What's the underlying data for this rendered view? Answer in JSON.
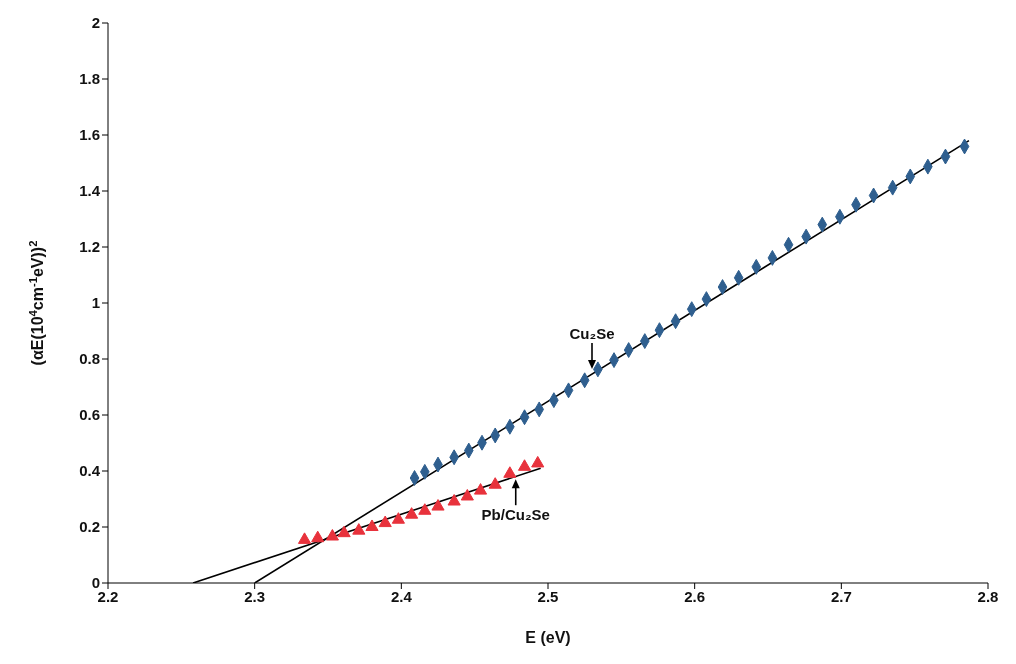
{
  "chart_data": {
    "type": "scatter",
    "xlabel": "E (eV)",
    "ylabel": "(αE(10$^{4}$cm$^{-1}$eV))$^{2}$",
    "xlim": [
      2.2,
      2.8
    ],
    "xticks": [
      2.2,
      2.3,
      2.4,
      2.5,
      2.6,
      2.7,
      2.8
    ],
    "ylim": [
      0,
      2
    ],
    "yticks": [
      0,
      0.2,
      0.4,
      0.6,
      0.8,
      1,
      1.2,
      1.4,
      1.6,
      1.8,
      2
    ],
    "grid": false,
    "legend": false,
    "series": [
      {
        "marker": "diamond",
        "color": "#2f5f8f",
        "x": [
          2.409,
          2.416,
          2.425,
          2.436,
          2.446,
          2.455,
          2.464,
          2.474,
          2.484,
          2.494,
          2.504,
          2.514,
          2.525,
          2.534,
          2.545,
          2.555,
          2.566,
          2.576,
          2.587,
          2.598,
          2.608,
          2.619,
          2.63,
          2.642,
          2.653,
          2.664,
          2.676,
          2.687,
          2.699,
          2.71,
          2.722,
          2.735,
          2.747,
          2.759,
          2.771,
          2.784
        ],
        "values": [
          0.375,
          0.397,
          0.423,
          0.449,
          0.473,
          0.501,
          0.527,
          0.558,
          0.592,
          0.62,
          0.653,
          0.688,
          0.724,
          0.763,
          0.796,
          0.832,
          0.864,
          0.903,
          0.935,
          0.978,
          1.014,
          1.057,
          1.09,
          1.129,
          1.161,
          1.208,
          1.237,
          1.28,
          1.308,
          1.351,
          1.384,
          1.412,
          1.452,
          1.487,
          1.523,
          1.559
        ]
      },
      {
        "marker": "triangle",
        "color": "#e8323c",
        "x": [
          2.334,
          2.343,
          2.353,
          2.361,
          2.371,
          2.38,
          2.389,
          2.398,
          2.407,
          2.416,
          2.425,
          2.436,
          2.445,
          2.454,
          2.464,
          2.474,
          2.484,
          2.493
        ],
        "values": [
          0.154,
          0.16,
          0.166,
          0.178,
          0.187,
          0.2,
          0.214,
          0.226,
          0.244,
          0.258,
          0.273,
          0.291,
          0.309,
          0.33,
          0.351,
          0.39,
          0.415,
          0.427
        ]
      },
      {
        "type": "line",
        "marker": "none",
        "color": "#000000",
        "x": [
          2.3,
          2.787
        ],
        "values": [
          0,
          1.58
        ]
      },
      {
        "type": "line",
        "marker": "none",
        "color": "#000000",
        "x": [
          2.258,
          2.495
        ],
        "values": [
          0,
          0.41
        ]
      }
    ],
    "annotations": [
      {
        "text": "Cu₂Se",
        "x": 2.53,
        "y": 0.75
      },
      {
        "text": "Pb/Cu₂Se",
        "x": 2.478,
        "y": 0.385
      }
    ]
  }
}
